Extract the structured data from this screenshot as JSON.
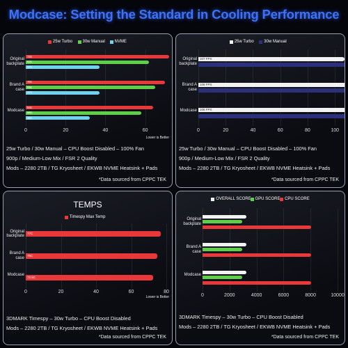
{
  "title": "Modcase: Setting the Standard in Cooling Performance",
  "chart_data": [
    {
      "type": "bar",
      "orientation": "horizontal",
      "grid": true,
      "categories": [
        "Original backplate",
        "Brand A case",
        "Modcase"
      ],
      "series": [
        {
          "name": "25w Turbo",
          "color": "#e8383a",
          "values": [
            72,
            70,
            64
          ],
          "value_labels": [
            "72c",
            "70c",
            "64c"
          ]
        },
        {
          "name": "30w Manual",
          "color": "#5fcf4a",
          "values": [
            62,
            65,
            58
          ],
          "value_labels": [
            "62c",
            "65c",
            "58c"
          ]
        },
        {
          "name": "NVME",
          "color": "#6fd3f0",
          "values": [
            37,
            37,
            32
          ],
          "value_labels": [
            "37c",
            "37c",
            "32c"
          ]
        }
      ],
      "xlim": [
        0,
        72
      ],
      "xticks": [
        0,
        20,
        40,
        60
      ],
      "annotation": "Lower is Better",
      "notes": [
        "25w Turbo / 30w Manual – CPU Boost Disabled – 100% Fan",
        "900p / Medium-Low Mix / FSR 2 Quality",
        "Mods – 2280 2TB / TG Kryosheet / EKWB NVME Heatsink + Pads"
      ],
      "source": "*Data sourced from CPPC TEK"
    },
    {
      "type": "bar",
      "orientation": "horizontal",
      "grid": true,
      "categories": [
        "Original backplate",
        "Brand A case",
        "Modcase"
      ],
      "series": [
        {
          "name": "25w Turbo",
          "color": "#f2f2f2",
          "values": [
            107,
            108,
            108
          ],
          "value_labels": [
            "107 FPS",
            "108 FPS",
            "108 FPS"
          ]
        },
        {
          "name": "30w Manual",
          "color": "#2c2f7a",
          "values": [
            108,
            109,
            109
          ]
        }
      ],
      "xlim": [
        0,
        105
      ],
      "xticks": [
        0,
        20,
        40,
        60,
        80,
        100
      ],
      "notes": [
        "25w Turbo / 30w Manual – CPU Boost Disabled – 100% Fan",
        "900p / Medium-Low Mix / FSR 2 Quality",
        "Mods – 2280 2TB / TG Kryosheet / EKWB NVME Heatsink + Pads"
      ],
      "source": "*Data sourced from CPPC TEK"
    },
    {
      "type": "bar",
      "orientation": "horizontal",
      "grid": true,
      "title": "TEMPS",
      "categories": [
        "Original backplate",
        "Brand A case",
        "Modcase"
      ],
      "series": [
        {
          "name": "Timespy Max Temp",
          "color": "#e8383a",
          "values": [
            77,
            75,
            72.5
          ],
          "value_labels": [
            "77C",
            "75C",
            "72.5C"
          ]
        }
      ],
      "xlim": [
        0,
        80
      ],
      "xticks": [
        0,
        20,
        40,
        60,
        80
      ],
      "annotation": "Lower is Better",
      "notes": [
        "3DMARK Timespy – 30w Turbo – CPU Boost Disabled",
        "Mods – 2280 2TB / TG Kryosheet / EKWB NVME Heatsink + Pads"
      ],
      "source": "*Data sourced from CPPC TEK"
    },
    {
      "type": "bar",
      "orientation": "horizontal",
      "grid": true,
      "categories": [
        "Original backplate",
        "Brand A case",
        "Modcase"
      ],
      "series": [
        {
          "name": "OVERALL SCORE",
          "color": "#f2f2f2",
          "values": [
            3231,
            3233,
            3233
          ]
        },
        {
          "name": "GPU SCORE",
          "color": "#5fcf4a",
          "values": [
            2923,
            2923,
            2924
          ]
        },
        {
          "name": "CPU SCORE",
          "color": "#e8383a",
          "values": [
            8060,
            8060,
            8050
          ]
        }
      ],
      "xlim": [
        0,
        10000
      ],
      "xticks": [
        0,
        2000,
        4000,
        6000,
        8000,
        10000
      ],
      "notes": [
        "3DMARK Timespy – 30w Turbo – CPU Boost Disabled",
        "Mods – 2280 2TB / TG Kryosheet / EKWB NVME Heatsink + Pads"
      ],
      "source": "*Data sourced from CPPC TEK"
    }
  ]
}
